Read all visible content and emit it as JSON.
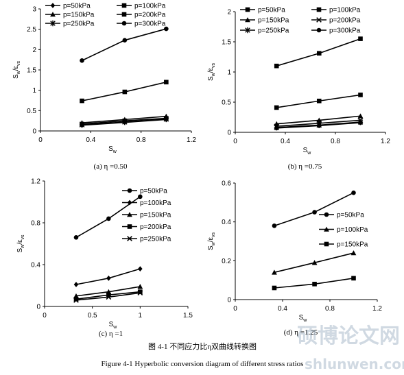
{
  "figure": {
    "title_cn": "图 4-1  不同应力比η双曲线转换图",
    "title_en": "Figure 4-1 Hyperbolic conversion diagram of different stress ratios"
  },
  "watermark": {
    "text": "硕博论文网",
    "url": "shlunwen.com"
  },
  "chart_data": [
    {
      "type": "line",
      "panel": "a",
      "caption": "(a) η =0.50",
      "xlabel": "Sw",
      "ylabel": "Sw/εvs",
      "xlim": [
        0,
        1.2
      ],
      "ylim": [
        0,
        3
      ],
      "xticks": [
        "0",
        "0.4",
        "0.8",
        "1.2"
      ],
      "yticks": [
        "0",
        "0.5",
        "1",
        "1.5",
        "2",
        "2.5",
        "3"
      ],
      "legend_position": "top",
      "legend_columns": 2,
      "x": [
        0.33,
        0.67,
        1.0
      ],
      "series": [
        {
          "name": "p=50kPa",
          "marker": "diamond",
          "values": [
            0.14,
            0.21,
            0.28
          ]
        },
        {
          "name": "p=100kPa",
          "marker": "square",
          "values": [
            0.17,
            0.25,
            0.31
          ]
        },
        {
          "name": "p=150kPa",
          "marker": "triangle",
          "values": [
            0.2,
            0.28,
            0.36
          ]
        },
        {
          "name": "p=200kPa",
          "marker": "square",
          "values": [
            0.74,
            0.96,
            1.2
          ]
        },
        {
          "name": "p=250kPa",
          "marker": "star",
          "values": [
            0.15,
            0.22,
            0.29
          ]
        },
        {
          "name": "p=300kPa",
          "marker": "circle",
          "values": [
            1.73,
            2.23,
            2.51
          ]
        }
      ]
    },
    {
      "type": "line",
      "panel": "b",
      "caption": "(b) η =0.75",
      "xlabel": "Sw",
      "ylabel": "Sw/εvs",
      "xlim": [
        0,
        1.2
      ],
      "ylim": [
        0,
        2
      ],
      "xticks": [
        "0",
        "0.4",
        "0.8",
        "1.2"
      ],
      "yticks": [
        "0",
        "0.5",
        "1",
        "1.5",
        "2"
      ],
      "legend_position": "top",
      "legend_columns": 2,
      "x": [
        0.33,
        0.67,
        1.0
      ],
      "series": [
        {
          "name": "p=50kPa",
          "marker": "square",
          "values": [
            1.1,
            1.31,
            1.55
          ]
        },
        {
          "name": "p=100kPa",
          "marker": "square",
          "values": [
            0.41,
            0.52,
            0.62
          ]
        },
        {
          "name": "p=150kPa",
          "marker": "triangle",
          "values": [
            0.14,
            0.2,
            0.27
          ]
        },
        {
          "name": "p=200kPa",
          "marker": "x",
          "values": [
            0.1,
            0.15,
            0.2
          ]
        },
        {
          "name": "p=250kPa",
          "marker": "star",
          "values": [
            0.08,
            0.12,
            0.17
          ]
        },
        {
          "name": "p=300kPa",
          "marker": "circle",
          "values": [
            0.07,
            0.11,
            0.16
          ]
        }
      ]
    },
    {
      "type": "line",
      "panel": "c",
      "caption": "(c) η =1",
      "xlabel": "Sw",
      "ylabel": "Sw/εvs",
      "xlim": [
        0,
        1.5
      ],
      "ylim": [
        0,
        1.2
      ],
      "xticks": [
        "0",
        "0.5",
        "1",
        "1.5"
      ],
      "yticks": [
        "0",
        "0.4",
        "0.8",
        "1.2"
      ],
      "legend_position": "right",
      "legend_columns": 1,
      "x": [
        0.33,
        0.67,
        1.0
      ],
      "series": [
        {
          "name": "p=50kPa",
          "marker": "circle",
          "values": [
            0.66,
            0.84,
            1.05
          ]
        },
        {
          "name": "p=100kPa",
          "marker": "diamond",
          "values": [
            0.21,
            0.27,
            0.36
          ]
        },
        {
          "name": "p=150kPa",
          "marker": "triangle",
          "values": [
            0.1,
            0.14,
            0.19
          ]
        },
        {
          "name": "p=200kPa",
          "marker": "square",
          "values": [
            0.07,
            0.11,
            0.14
          ]
        },
        {
          "name": "p=250kPa",
          "marker": "x",
          "values": [
            0.06,
            0.09,
            0.13
          ]
        }
      ]
    },
    {
      "type": "line",
      "panel": "d",
      "caption": "(d) η =1.25",
      "xlabel": "Sw",
      "ylabel": "Sw/εvs",
      "xlim": [
        0,
        1.2
      ],
      "ylim": [
        0,
        0.6
      ],
      "xticks": [
        "0",
        "0.4",
        "0.8",
        "1.2"
      ],
      "yticks": [
        "0",
        "0.2",
        "0.4",
        "0.6"
      ],
      "legend_position": "right",
      "legend_columns": 1,
      "x": [
        0.33,
        0.67,
        1.0
      ],
      "series": [
        {
          "name": "p=50kPa",
          "marker": "circle",
          "values": [
            0.38,
            0.45,
            0.55
          ]
        },
        {
          "name": "p=100kPa",
          "marker": "triangle",
          "values": [
            0.14,
            0.19,
            0.24
          ]
        },
        {
          "name": "p=150kPa",
          "marker": "square",
          "values": [
            0.06,
            0.08,
            0.11
          ]
        }
      ]
    }
  ]
}
